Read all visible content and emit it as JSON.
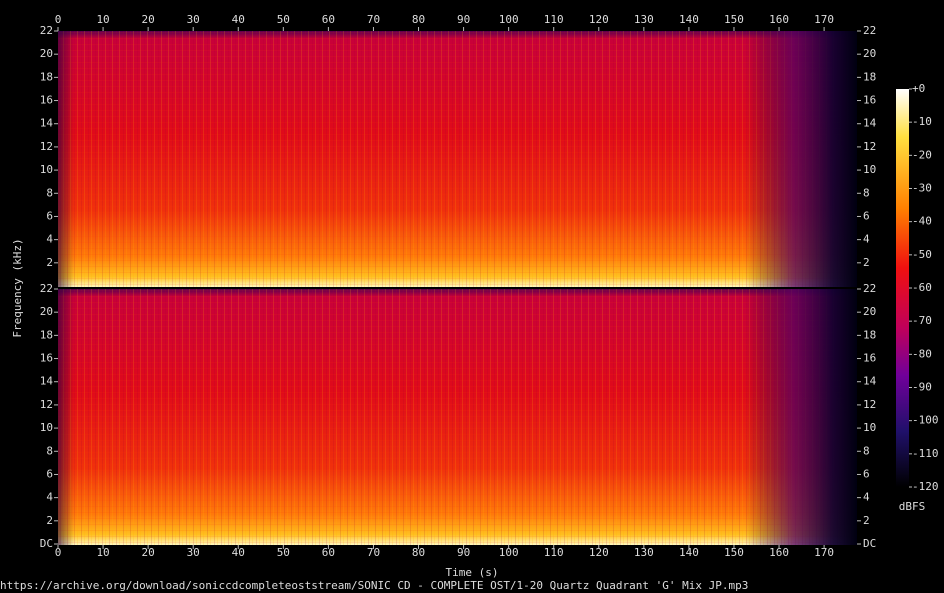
{
  "chart_data": {
    "type": "spectrogram",
    "xlabel": "Time (s)",
    "ylabel": "Frequency (kHz)",
    "xlim": [
      0,
      177.3
    ],
    "xticks": [
      0,
      10,
      20,
      30,
      40,
      50,
      60,
      70,
      80,
      90,
      100,
      110,
      120,
      130,
      140,
      150,
      160,
      170
    ],
    "channels": [
      {
        "ylim": [
          0,
          22
        ],
        "yticks": [
          2,
          4,
          6,
          8,
          10,
          12,
          14,
          16,
          18,
          20,
          22
        ]
      },
      {
        "ylim": [
          0,
          22
        ],
        "yticks": [
          {
            "value": 0,
            "label": "DC"
          },
          2,
          4,
          6,
          8,
          10,
          12,
          14,
          16,
          18,
          20,
          22
        ]
      }
    ],
    "colorbar": {
      "label": "dBFS",
      "clim": [
        -120,
        0
      ],
      "ticks": [
        {
          "value": 0,
          "label": "+0"
        },
        -10,
        -20,
        -30,
        -40,
        -50,
        -60,
        -70,
        -80,
        -90,
        -100,
        -110,
        -120
      ]
    },
    "source": "https://archive.org/download/soniccdcompleteoststream/SONIC CD - COMPLETE OST/1-20 Quartz Quadrant 'G' Mix JP.mp3"
  }
}
